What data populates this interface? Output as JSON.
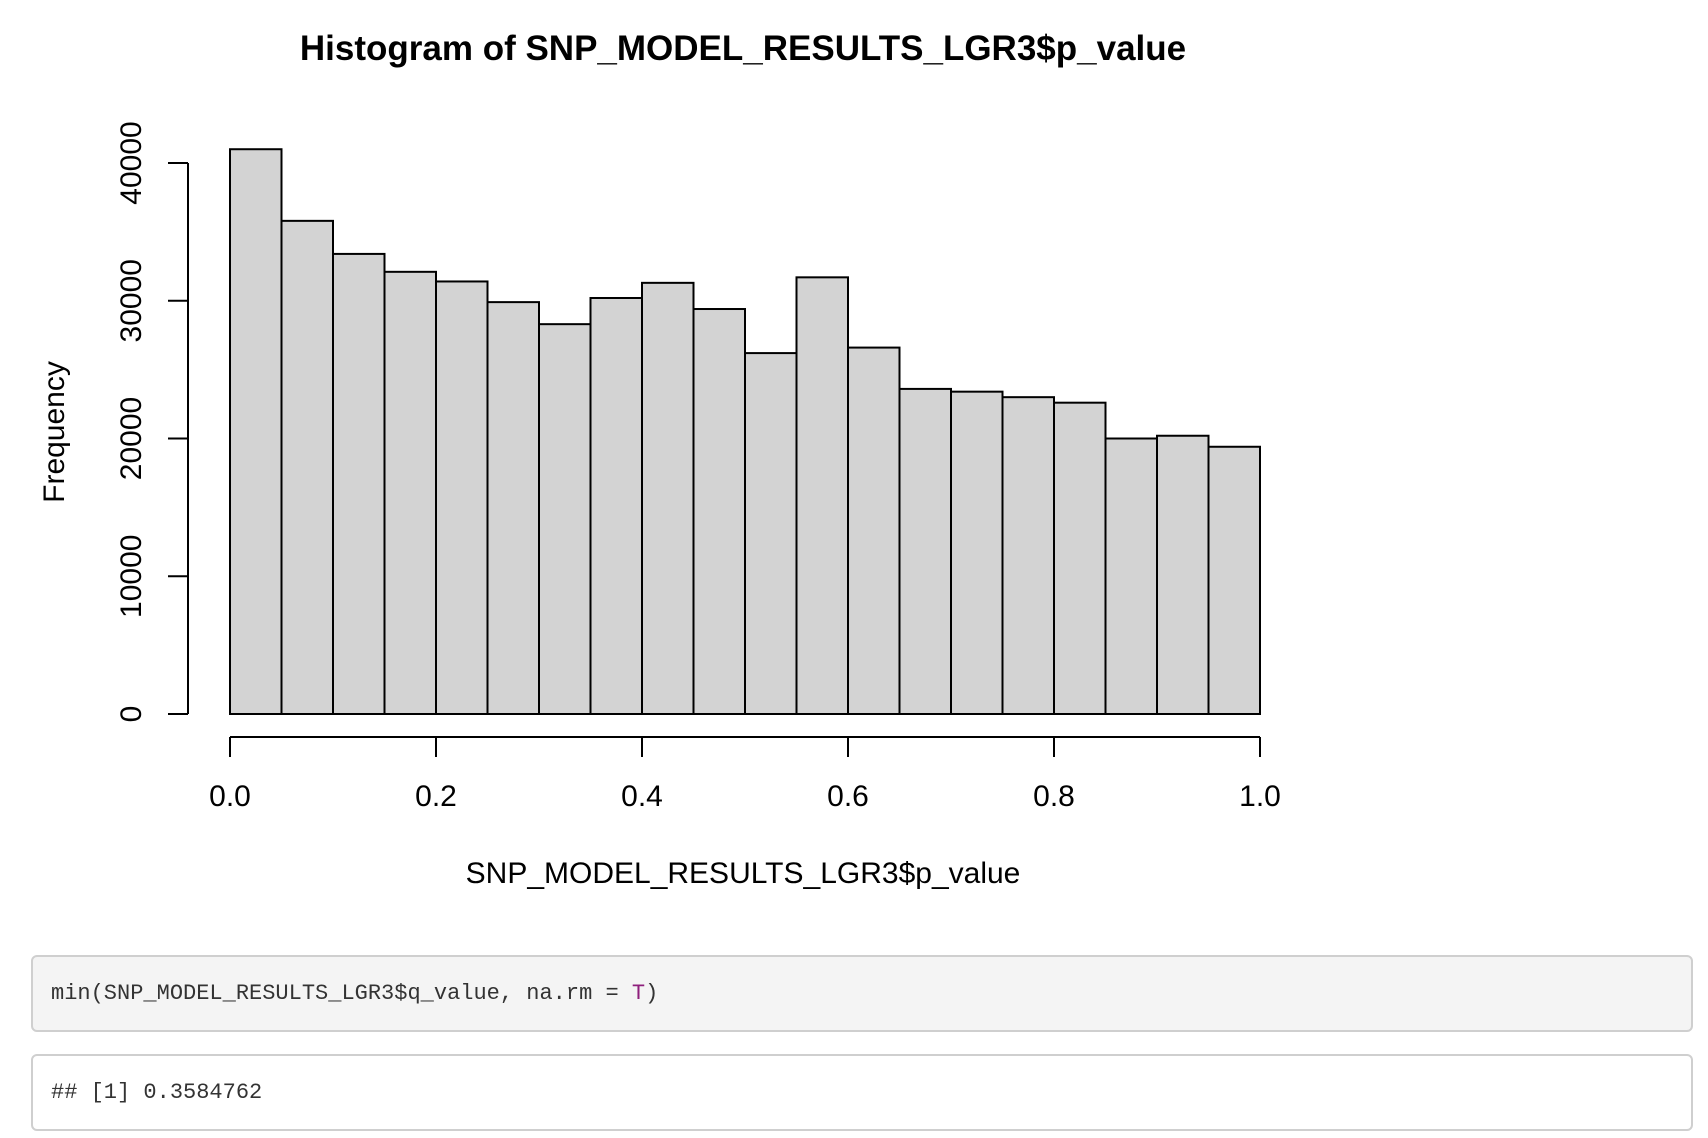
{
  "chart_data": {
    "type": "bar",
    "title": "Histogram of SNP_MODEL_RESULTS_LGR3$p_value",
    "xlabel": "SNP_MODEL_RESULTS_LGR3$p_value",
    "ylabel": "Frequency",
    "bin_edges": [
      0.0,
      0.05,
      0.1,
      0.15,
      0.2,
      0.25,
      0.3,
      0.35,
      0.4,
      0.45,
      0.5,
      0.55,
      0.6,
      0.65,
      0.7,
      0.75,
      0.8,
      0.85,
      0.9,
      0.95,
      1.0
    ],
    "values": [
      41000,
      35800,
      33400,
      32100,
      31400,
      29900,
      28300,
      30200,
      31300,
      29400,
      26200,
      31700,
      26600,
      23600,
      23400,
      23000,
      22600,
      20000,
      20200,
      19400
    ],
    "xlim": [
      0,
      1
    ],
    "ylim": [
      0,
      41000
    ],
    "x_ticks": [
      0.0,
      0.2,
      0.4,
      0.6,
      0.8,
      1.0
    ],
    "x_tick_labels": [
      "0.0",
      "0.2",
      "0.4",
      "0.6",
      "0.8",
      "1.0"
    ],
    "y_ticks": [
      0,
      10000,
      20000,
      30000,
      40000
    ],
    "y_tick_labels": [
      "0",
      "10000",
      "20000",
      "30000",
      "40000"
    ],
    "bar_fill": "#d3d3d3",
    "bar_stroke": "#000000"
  },
  "code": {
    "input_prefix": "min(SNP_MODEL_RESULTS_LGR3$q_value, na.rm = ",
    "input_keyword": "T",
    "input_suffix": ")",
    "keyword_color": "#8e1f7c",
    "output": "## [1] 0.3584762"
  }
}
